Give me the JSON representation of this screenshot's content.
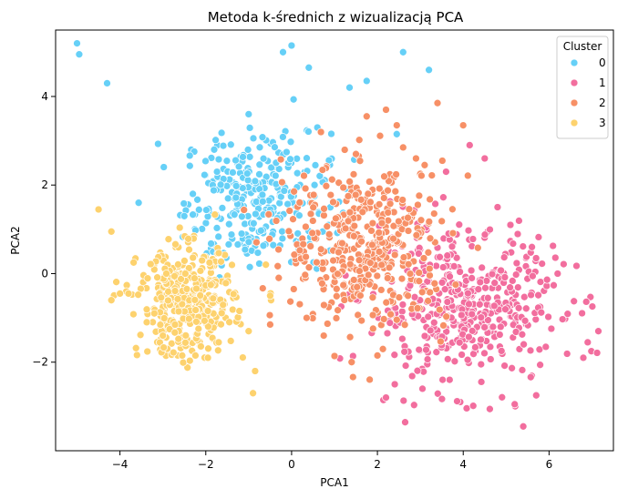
{
  "chart_data": {
    "type": "scatter",
    "title": "Metoda k-średnich z wizualizacją PCA",
    "xlabel": "PCA1",
    "ylabel": "PCA2",
    "xlim": [
      -5.5,
      7.5
    ],
    "ylim": [
      -4.0,
      5.5
    ],
    "xticks": [
      -4,
      -2,
      0,
      2,
      4,
      6
    ],
    "yticks": [
      -2,
      0,
      2,
      4
    ],
    "xtick_labels": [
      "−4",
      "−2",
      "0",
      "2",
      "4",
      "6"
    ],
    "ytick_labels": [
      "−2",
      "0",
      "2",
      "4"
    ],
    "grid": false,
    "legend": {
      "title": "Cluster",
      "placement": "top-right"
    },
    "series": [
      {
        "name": "0",
        "color": "#66D0F7",
        "n_points": 300,
        "center": [
          -0.8,
          1.7
        ],
        "spread": [
          0.85,
          0.75
        ],
        "outliers": [
          [
            -5.0,
            5.2
          ],
          [
            -4.95,
            4.95
          ],
          [
            -4.3,
            4.3
          ],
          [
            0.0,
            5.15
          ],
          [
            -0.2,
            5.0
          ],
          [
            0.4,
            4.65
          ],
          [
            1.35,
            4.2
          ],
          [
            1.75,
            4.35
          ],
          [
            2.6,
            5.0
          ],
          [
            3.2,
            4.6
          ],
          [
            -1.0,
            3.6
          ],
          [
            0.6,
            3.3
          ],
          [
            2.45,
            3.15
          ],
          [
            -2.3,
            1.8
          ],
          [
            -2.5,
            1.3
          ]
        ]
      },
      {
        "name": "1",
        "color": "#F26E9E",
        "n_points": 450,
        "center": [
          4.0,
          -0.8
        ],
        "spread": [
          1.15,
          0.85
        ],
        "outliers": [
          [
            4.15,
            2.9
          ],
          [
            3.6,
            2.3
          ],
          [
            4.5,
            2.6
          ],
          [
            5.4,
            -3.45
          ],
          [
            5.2,
            -2.95
          ],
          [
            5.7,
            -2.75
          ],
          [
            6.9,
            -1.55
          ],
          [
            7.15,
            -1.3
          ],
          [
            6.8,
            -1.9
          ],
          [
            2.2,
            -2.8
          ],
          [
            3.05,
            -2.6
          ],
          [
            6.2,
            0.0
          ],
          [
            5.1,
            1.1
          ],
          [
            5.6,
            0.6
          ],
          [
            4.8,
            1.5
          ]
        ]
      },
      {
        "name": "2",
        "color": "#F79066",
        "n_points": 420,
        "center": [
          1.75,
          0.65
        ],
        "spread": [
          0.95,
          0.9
        ],
        "outliers": [
          [
            1.75,
            3.55
          ],
          [
            2.45,
            3.35
          ],
          [
            3.4,
            3.85
          ],
          [
            4.0,
            3.35
          ],
          [
            2.6,
            2.85
          ],
          [
            2.9,
            2.6
          ],
          [
            -0.5,
            -1.15
          ],
          [
            0.75,
            -1.4
          ],
          [
            0.35,
            -1.0
          ],
          [
            1.4,
            -2.0
          ],
          [
            2.0,
            -1.85
          ],
          [
            3.1,
            2.45
          ],
          [
            0.05,
            -0.35
          ],
          [
            1.5,
            2.7
          ],
          [
            2.2,
            3.7
          ]
        ]
      },
      {
        "name": "3",
        "color": "#FDD26E",
        "n_points": 400,
        "center": [
          -2.45,
          -0.65
        ],
        "spread": [
          0.55,
          0.6
        ],
        "outliers": [
          [
            -4.5,
            1.45
          ],
          [
            -4.2,
            0.95
          ],
          [
            -4.2,
            -0.6
          ],
          [
            -4.0,
            -0.45
          ],
          [
            -3.8,
            -0.45
          ],
          [
            -0.85,
            -2.2
          ],
          [
            -0.9,
            -2.7
          ],
          [
            -1.7,
            -1.55
          ],
          [
            -0.5,
            -0.5
          ],
          [
            -0.6,
            0.2
          ],
          [
            -1.0,
            -1.3
          ],
          [
            -1.95,
            -1.9
          ],
          [
            -2.55,
            -1.85
          ],
          [
            -3.0,
            -1.4
          ],
          [
            -3.2,
            -0.9
          ]
        ]
      }
    ]
  }
}
